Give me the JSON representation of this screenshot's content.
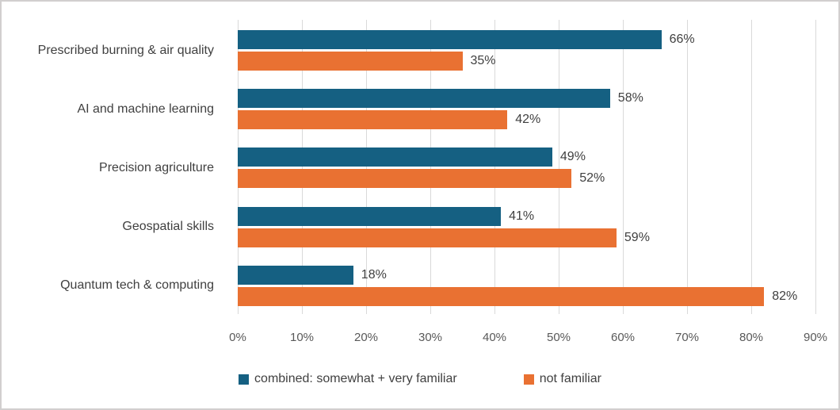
{
  "chart_data": {
    "type": "bar",
    "orientation": "horizontal",
    "title": "",
    "categories": [
      "Prescribed burning & air quality",
      "AI and machine learning",
      "Precision agriculture",
      "Geospatial skills",
      "Quantum tech & computing"
    ],
    "series": [
      {
        "name": "combined: somewhat + very familiar",
        "color": "#156082",
        "values": [
          66,
          58,
          49,
          41,
          18
        ],
        "labels": [
          "66%",
          "58%",
          "49%",
          "41%",
          "18%"
        ]
      },
      {
        "name": "not familiar",
        "color": "#E97132",
        "values": [
          35,
          42,
          52,
          59,
          82
        ],
        "labels": [
          "35%",
          "42%",
          "52%",
          "59%",
          "82%"
        ]
      }
    ],
    "value_axis": {
      "min": 0,
      "max": 90,
      "step": 10,
      "tick_labels": [
        "0%",
        "10%",
        "20%",
        "30%",
        "40%",
        "50%",
        "60%",
        "70%",
        "80%",
        "90%"
      ]
    },
    "grid": true,
    "legend_position": "bottom"
  },
  "colors": {
    "gridline": "#D9D9D9",
    "axis_text": "#595959",
    "label_text": "#404040",
    "frame_border": "#D1CFCF",
    "background": "#FFFFFF"
  }
}
